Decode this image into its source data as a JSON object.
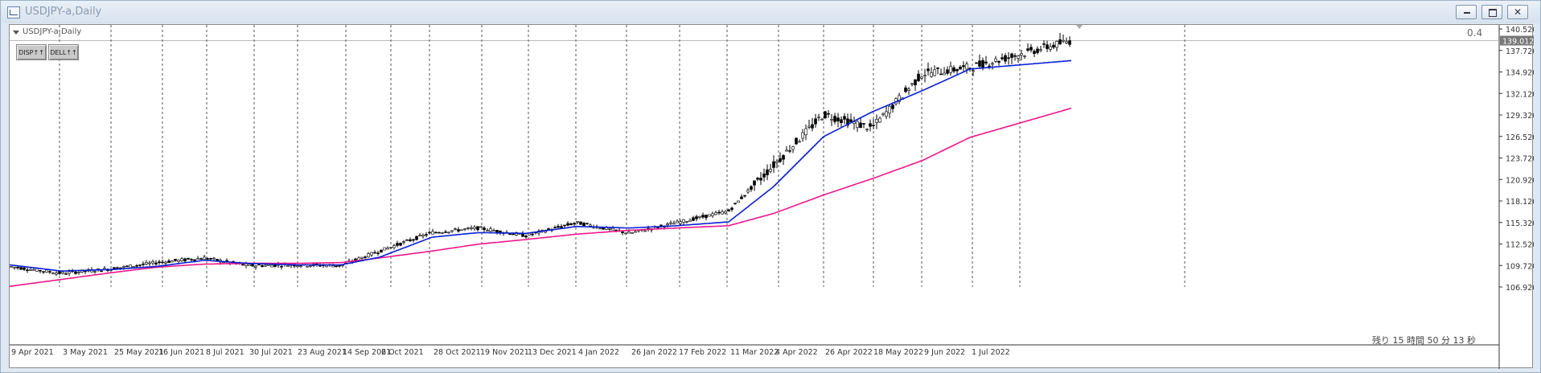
{
  "window": {
    "title": "USDJPY-a,Daily"
  },
  "chart": {
    "label": "USDJPY-a,Daily",
    "buttons": [
      "DISP↑↑",
      "DELL↑↑"
    ],
    "indicator_value": "0.4",
    "remaining_time": "残り 15 時間 50 分 13 秒",
    "current_price": "139.012"
  },
  "colors": {
    "ma_fast": "#0a1fd6",
    "ma_slow": "#f0168c",
    "price_label_bg": "#777777",
    "candle": "#000000"
  },
  "icons": [
    "chart-window-icon",
    "minimize-icon",
    "restore-icon",
    "close-icon",
    "chart-menu-triangle-icon"
  ],
  "chart_data": {
    "type": "line",
    "symbol": "USDJPY-a",
    "timeframe": "Daily",
    "ylim": [
      106.92,
      140.52
    ],
    "y_ticks": [
      "140.520",
      "137.720",
      "134.920",
      "132.120",
      "129.320",
      "126.520",
      "123.720",
      "120.920",
      "118.120",
      "115.320",
      "112.520",
      "109.720",
      "106.920"
    ],
    "x_ticks": [
      "9 Apr 2021",
      "3 May 2021",
      "25 May 2021",
      "16 Jun 2021",
      "8 Jul 2021",
      "30 Jul 2021",
      "23 Aug 2021",
      "14 Sep 2021",
      "6 Oct 2021",
      "28 Oct 2021",
      "19 Nov 2021",
      "13 Dec 2021",
      "4 Jan 2022",
      "26 Jan 2022",
      "17 Feb 2022",
      "11 Mar 2022",
      "4 Apr 2022",
      "26 Apr 2022",
      "18 May 2022",
      "9 Jun 2022",
      "1 Jul 2022"
    ],
    "grid": {
      "vertical": true,
      "horizontal": false
    },
    "series": [
      {
        "kind": "price",
        "x": [
          "9 Apr 2021",
          "3 May 2021",
          "25 May 2021",
          "16 Jun 2021",
          "8 Jul 2021",
          "30 Jul 2021",
          "23 Aug 2021",
          "14 Sep 2021",
          "6 Oct 2021",
          "28 Oct 2021",
          "19 Nov 2021",
          "13 Dec 2021",
          "4 Jan 2022",
          "26 Jan 2022",
          "17 Feb 2022",
          "11 Mar 2022",
          "4 Apr 2022",
          "26 Apr 2022",
          "18 May 2022",
          "9 Jun 2022",
          "1 Jul 2022",
          "Jul 2022"
        ],
        "values": [
          109.6,
          108.7,
          109.3,
          110.1,
          110.7,
          109.7,
          109.8,
          109.7,
          111.6,
          114.0,
          114.6,
          113.6,
          115.3,
          113.9,
          115.3,
          116.8,
          122.8,
          129.4,
          127.6,
          134.7,
          135.5,
          139.0
        ]
      },
      {
        "kind": "moving-average-fast",
        "x": [
          "9 Apr 2021",
          "3 May 2021",
          "25 May 2021",
          "16 Jun 2021",
          "8 Jul 2021",
          "30 Jul 2021",
          "23 Aug 2021",
          "14 Sep 2021",
          "6 Oct 2021",
          "28 Oct 2021",
          "19 Nov 2021",
          "13 Dec 2021",
          "4 Jan 2022",
          "26 Jan 2022",
          "17 Feb 2022",
          "11 Mar 2022",
          "4 Apr 2022",
          "26 Apr 2022",
          "18 May 2022",
          "9 Jun 2022",
          "1 Jul 2022",
          "Jul 2022"
        ],
        "values": [
          109.8,
          109.0,
          109.2,
          109.6,
          110.4,
          110.0,
          109.8,
          109.8,
          110.8,
          113.4,
          114.0,
          113.9,
          114.8,
          114.6,
          114.9,
          115.4,
          120.0,
          126.5,
          129.7,
          132.5,
          135.3,
          136.4
        ]
      },
      {
        "kind": "moving-average-slow",
        "x": [
          "9 Apr 2021",
          "3 May 2021",
          "25 May 2021",
          "16 Jun 2021",
          "8 Jul 2021",
          "30 Jul 2021",
          "23 Aug 2021",
          "14 Sep 2021",
          "6 Oct 2021",
          "28 Oct 2021",
          "19 Nov 2021",
          "13 Dec 2021",
          "4 Jan 2022",
          "26 Jan 2022",
          "17 Feb 2022",
          "11 Mar 2022",
          "4 Apr 2022",
          "26 Apr 2022",
          "18 May 2022",
          "9 Jun 2022",
          "1 Jul 2022",
          "Jul 2022"
        ],
        "values": [
          107.0,
          107.9,
          108.8,
          109.5,
          109.9,
          110.0,
          110.0,
          110.1,
          110.7,
          111.6,
          112.5,
          113.1,
          113.8,
          114.3,
          114.6,
          114.9,
          116.5,
          118.9,
          121.0,
          123.4,
          126.4,
          130.2
        ]
      }
    ]
  }
}
